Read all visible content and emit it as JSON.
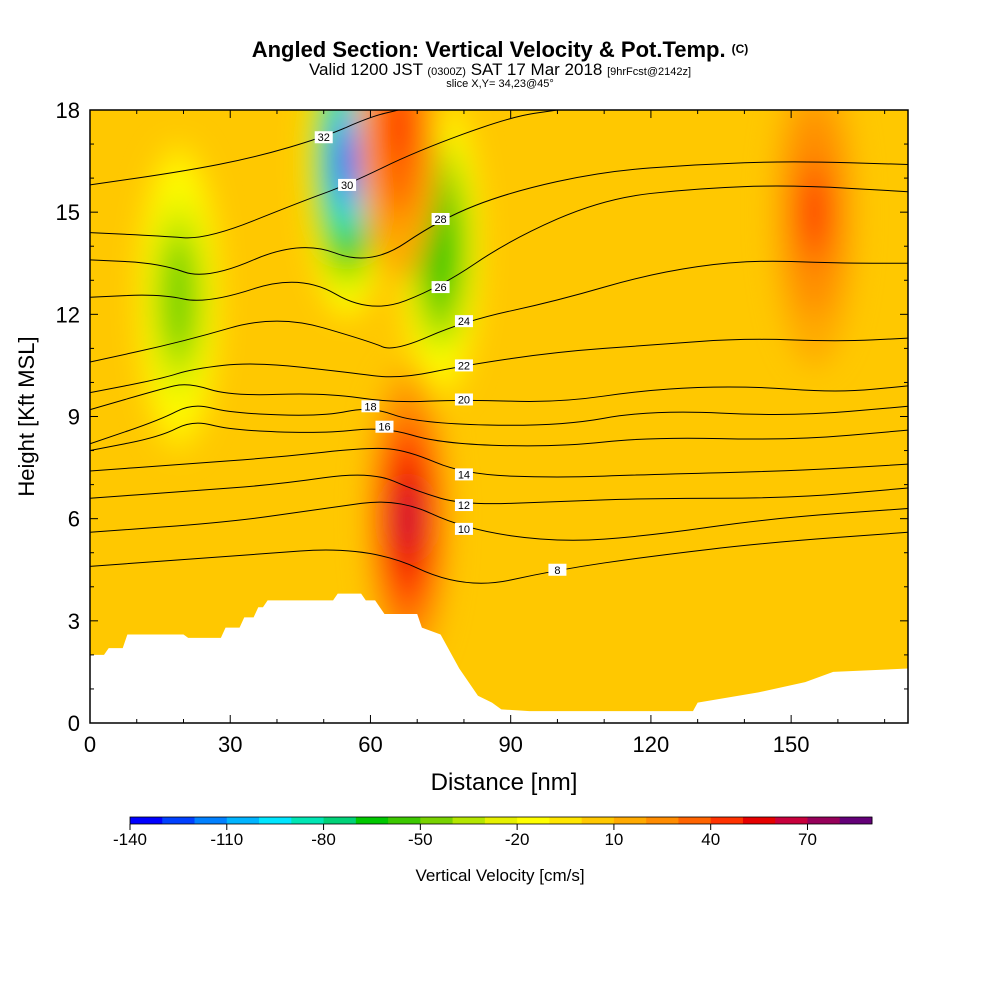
{
  "header": {
    "title": "Angled Section: Vertical Velocity & Pot.Temp.",
    "title_note": "(C)",
    "valid_prefix": "Valid 1200 JST",
    "valid_utc": "(0300Z)",
    "valid_date": "SAT 17 Mar 2018",
    "forecast_note": "[9hrFcst@2142z]",
    "slice": "slice X,Y= 34,23@45°"
  },
  "chart_data": {
    "type": "contour",
    "xlabel": "Distance [nm]",
    "ylabel": "Height [Kft MSL]",
    "xlim": [
      0,
      175
    ],
    "ylim": [
      0,
      18
    ],
    "x_ticks": [
      0,
      30,
      60,
      90,
      120,
      150
    ],
    "y_ticks": [
      0,
      3,
      6,
      9,
      12,
      15,
      18
    ],
    "field": "Vertical Velocity",
    "contour_field": "Potential Temperature (C)",
    "colorbar": {
      "label": "Vertical Velocity [cm/s]",
      "ticks": [
        -140,
        -110,
        -80,
        -50,
        -20,
        10,
        40,
        70
      ],
      "levels": [
        -140,
        -130,
        -120,
        -110,
        -100,
        -90,
        -80,
        -70,
        -60,
        -50,
        -40,
        -30,
        -20,
        -10,
        0,
        10,
        20,
        30,
        40,
        50,
        60,
        70,
        80
      ],
      "colors": [
        "#0000ff",
        "#0040ff",
        "#0080ff",
        "#00b4ff",
        "#00e6ff",
        "#00e6b4",
        "#00d278",
        "#00c800",
        "#3cc800",
        "#78d200",
        "#b4e600",
        "#e6f000",
        "#ffff00",
        "#ffe600",
        "#ffc800",
        "#ffaa00",
        "#ff8c00",
        "#ff6400",
        "#ff3200",
        "#e60000",
        "#c8003c",
        "#96005a",
        "#640078"
      ]
    },
    "w_features": [
      {
        "type": "downdraft",
        "x": 55,
        "z": 16.5,
        "min_value": -130
      },
      {
        "type": "downdraft",
        "x": 75,
        "z": 14,
        "min_value": -70
      },
      {
        "type": "downdraft",
        "x": 19,
        "z": 12.5,
        "min_value": -50
      },
      {
        "type": "updraft",
        "x": 66,
        "z": 17.5,
        "max_value": 45
      },
      {
        "type": "updraft",
        "x": 68,
        "z": 6,
        "max_value": 60
      },
      {
        "type": "updraft",
        "x": 155,
        "z": 15,
        "max_value": 40
      }
    ],
    "terrain_top": [
      [
        0,
        2.0
      ],
      [
        3,
        2.0
      ],
      [
        4,
        2.2
      ],
      [
        7,
        2.2
      ],
      [
        8,
        2.6
      ],
      [
        20,
        2.6
      ],
      [
        21,
        2.5
      ],
      [
        28,
        2.5
      ],
      [
        29,
        2.8
      ],
      [
        32,
        2.8
      ],
      [
        33,
        3.1
      ],
      [
        35,
        3.1
      ],
      [
        36,
        3.4
      ],
      [
        37,
        3.4
      ],
      [
        38,
        3.6
      ],
      [
        52,
        3.6
      ],
      [
        53,
        3.8
      ],
      [
        58,
        3.8
      ],
      [
        59,
        3.6
      ],
      [
        61,
        3.6
      ],
      [
        62,
        3.4
      ],
      [
        63,
        3.2
      ],
      [
        70,
        3.2
      ],
      [
        71,
        2.8
      ],
      [
        75,
        2.6
      ],
      [
        77,
        2.1
      ],
      [
        79,
        1.6
      ],
      [
        81,
        1.2
      ],
      [
        83,
        0.8
      ],
      [
        86,
        0.6
      ],
      [
        88,
        0.4
      ],
      [
        94,
        0.35
      ],
      [
        129,
        0.35
      ],
      [
        130,
        0.6
      ],
      [
        143,
        0.9
      ],
      [
        153,
        1.2
      ],
      [
        159,
        1.5
      ],
      [
        175,
        1.6
      ]
    ],
    "theta_contours": [
      {
        "label": "8",
        "points": [
          [
            0,
            4.6
          ],
          [
            30,
            4.9
          ],
          [
            60,
            5.2
          ],
          [
            80,
            3.9
          ],
          [
            100,
            4.5
          ],
          [
            120,
            4.9
          ],
          [
            145,
            5.3
          ],
          [
            175,
            5.6
          ]
        ]
      },
      {
        "label": "10",
        "points": [
          [
            0,
            5.6
          ],
          [
            30,
            5.9
          ],
          [
            50,
            6.3
          ],
          [
            66,
            6.6
          ],
          [
            80,
            5.7
          ],
          [
            100,
            5.3
          ],
          [
            120,
            5.5
          ],
          [
            145,
            6.0
          ],
          [
            175,
            6.3
          ]
        ]
      },
      {
        "label": "12",
        "points": [
          [
            0,
            6.6
          ],
          [
            20,
            6.8
          ],
          [
            40,
            7.0
          ],
          [
            60,
            7.4
          ],
          [
            70,
            6.8
          ],
          [
            80,
            6.4
          ],
          [
            100,
            6.5
          ],
          [
            120,
            6.6
          ],
          [
            150,
            6.6
          ],
          [
            175,
            6.9
          ]
        ]
      },
      {
        "label": "14",
        "points": [
          [
            0,
            7.4
          ],
          [
            20,
            7.6
          ],
          [
            40,
            7.8
          ],
          [
            60,
            8.1
          ],
          [
            68,
            8.0
          ],
          [
            80,
            7.3
          ],
          [
            100,
            7.2
          ],
          [
            120,
            7.3
          ],
          [
            150,
            7.4
          ],
          [
            175,
            7.6
          ]
        ]
      },
      {
        "label": "16",
        "points": [
          [
            0,
            8.0
          ],
          [
            15,
            8.4
          ],
          [
            22,
            8.9
          ],
          [
            30,
            8.6
          ],
          [
            50,
            8.5
          ],
          [
            63,
            8.7
          ],
          [
            75,
            8.2
          ],
          [
            100,
            8.1
          ],
          [
            120,
            8.4
          ],
          [
            150,
            8.3
          ],
          [
            175,
            8.6
          ]
        ]
      },
      {
        "label": "18",
        "points": [
          [
            0,
            8.2
          ],
          [
            15,
            8.9
          ],
          [
            22,
            9.4
          ],
          [
            30,
            9.1
          ],
          [
            50,
            9.0
          ],
          [
            60,
            9.3
          ],
          [
            70,
            8.8
          ],
          [
            100,
            8.7
          ],
          [
            120,
            9.2
          ],
          [
            150,
            9.0
          ],
          [
            175,
            9.3
          ]
        ]
      },
      {
        "label": "20",
        "points": [
          [
            0,
            9.2
          ],
          [
            15,
            9.8
          ],
          [
            21,
            10.0
          ],
          [
            30,
            9.6
          ],
          [
            50,
            9.7
          ],
          [
            65,
            9.4
          ],
          [
            80,
            9.5
          ],
          [
            100,
            9.4
          ],
          [
            120,
            9.8
          ],
          [
            140,
            9.9
          ],
          [
            160,
            9.7
          ],
          [
            175,
            9.9
          ]
        ]
      },
      {
        "label": "22",
        "points": [
          [
            0,
            9.7
          ],
          [
            15,
            10.1
          ],
          [
            22,
            10.4
          ],
          [
            35,
            10.6
          ],
          [
            55,
            10.3
          ],
          [
            66,
            10.1
          ],
          [
            80,
            10.5
          ],
          [
            100,
            10.9
          ],
          [
            120,
            11.1
          ],
          [
            140,
            11.3
          ],
          [
            160,
            11.2
          ],
          [
            175,
            11.3
          ]
        ]
      },
      {
        "label": "24",
        "points": [
          [
            0,
            10.6
          ],
          [
            20,
            11.2
          ],
          [
            40,
            12.0
          ],
          [
            60,
            11.2
          ],
          [
            65,
            10.9
          ],
          [
            80,
            11.8
          ],
          [
            100,
            12.4
          ],
          [
            120,
            13.2
          ],
          [
            140,
            13.6
          ],
          [
            160,
            13.5
          ],
          [
            175,
            13.5
          ]
        ]
      },
      {
        "label": "26",
        "points": [
          [
            0,
            12.5
          ],
          [
            15,
            12.6
          ],
          [
            25,
            12.3
          ],
          [
            45,
            13.2
          ],
          [
            60,
            12.0
          ],
          [
            75,
            12.8
          ],
          [
            90,
            14.2
          ],
          [
            110,
            15.4
          ],
          [
            130,
            15.7
          ],
          [
            150,
            15.8
          ],
          [
            175,
            15.6
          ]
        ]
      },
      {
        "label": "28",
        "points": [
          [
            0,
            13.6
          ],
          [
            15,
            13.5
          ],
          [
            25,
            13.0
          ],
          [
            45,
            14.2
          ],
          [
            60,
            13.4
          ],
          [
            75,
            14.8
          ],
          [
            90,
            15.6
          ],
          [
            110,
            16.2
          ],
          [
            130,
            16.4
          ],
          [
            150,
            16.5
          ],
          [
            175,
            16.4
          ]
        ]
      },
      {
        "label": "30",
        "points": [
          [
            0,
            14.4
          ],
          [
            15,
            14.3
          ],
          [
            25,
            14.2
          ],
          [
            45,
            15.3
          ],
          [
            55,
            15.8
          ],
          [
            70,
            16.8
          ],
          [
            90,
            17.8
          ],
          [
            100,
            18.0
          ]
        ]
      },
      {
        "label": "32",
        "points": [
          [
            0,
            15.8
          ],
          [
            20,
            16.2
          ],
          [
            35,
            16.6
          ],
          [
            50,
            17.2
          ],
          [
            60,
            17.8
          ],
          [
            66,
            18.0
          ]
        ]
      }
    ]
  }
}
